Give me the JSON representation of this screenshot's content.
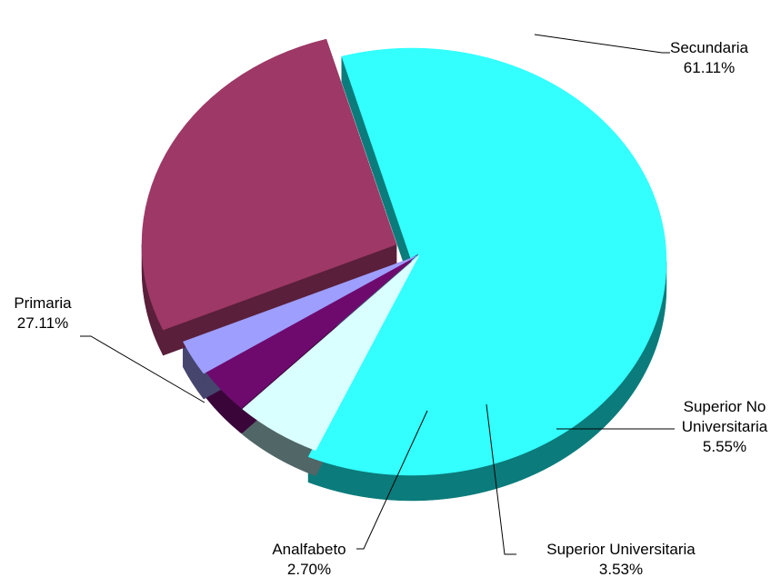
{
  "chart_data": {
    "type": "pie",
    "style": "3d-exploded",
    "slices": [
      {
        "label": [
          "Secundaria"
        ],
        "percent_label": "61.11%",
        "value": 61.11,
        "color": "#33FFFF",
        "side_color": "#0B7B7B"
      },
      {
        "label": [
          "Superior No",
          "Universitaria"
        ],
        "percent_label": "5.55%",
        "value": 5.55,
        "color": "#D9FFFF",
        "side_color": "#516666"
      },
      {
        "label": [
          "Superior Universitaria"
        ],
        "percent_label": "3.53%",
        "value": 3.53,
        "color": "#6E0A6E",
        "side_color": "#3A063A"
      },
      {
        "label": [
          "Analfabeto"
        ],
        "percent_label": "2.70%",
        "value": 2.7,
        "color": "#9E9EFF",
        "side_color": "#45456E"
      },
      {
        "label": [
          "Primaria"
        ],
        "percent_label": "27.11%",
        "value": 27.11,
        "color": "#9E3866",
        "side_color": "#5A1F3A"
      }
    ]
  }
}
